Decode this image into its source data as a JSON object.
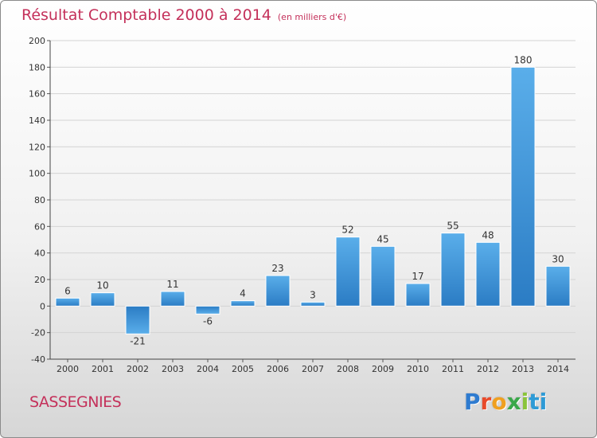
{
  "chart_data": {
    "type": "bar",
    "title": "Résultat Comptable 2000 à 2014",
    "subtitle": "(en milliers d'€)",
    "commune": "SASSEGNIES",
    "categories": [
      "2000",
      "2001",
      "2002",
      "2003",
      "2004",
      "2005",
      "2006",
      "2007",
      "2008",
      "2009",
      "2010",
      "2011",
      "2012",
      "2013",
      "2014"
    ],
    "values": [
      6,
      10,
      -21,
      11,
      -6,
      4,
      23,
      3,
      52,
      45,
      17,
      55,
      48,
      180,
      30
    ],
    "ylim": [
      -40,
      200
    ],
    "yticks": [
      -40,
      -20,
      0,
      20,
      40,
      60,
      80,
      100,
      120,
      140,
      160,
      180,
      200
    ],
    "grid": true,
    "legend": "none",
    "bar_color": "#3d8fd6",
    "title_color": "#c4305a"
  },
  "logo": {
    "letters": [
      "P",
      "r",
      "o",
      "x",
      "i",
      "ti"
    ]
  }
}
